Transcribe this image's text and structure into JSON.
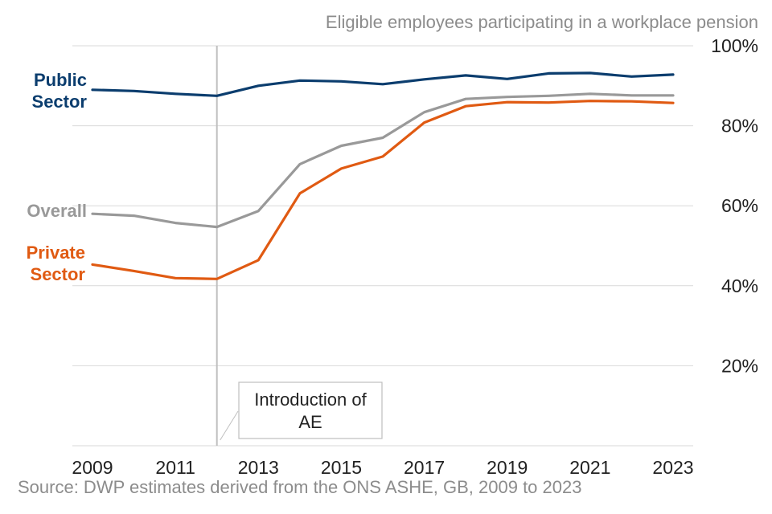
{
  "chart_data": {
    "type": "line",
    "title": "Eligible employees participating in a workplace pension",
    "source": "Source: DWP estimates derived from the ONS ASHE, GB, 2009 to 2023",
    "x": [
      2009,
      2010,
      2011,
      2012,
      2013,
      2014,
      2015,
      2016,
      2017,
      2018,
      2019,
      2020,
      2021,
      2022,
      2023
    ],
    "x_tick_labels": [
      "2009",
      "2011",
      "2013",
      "2015",
      "2017",
      "2019",
      "2021",
      "2023"
    ],
    "y_tick_labels": [
      "20%",
      "40%",
      "60%",
      "80%",
      "100%"
    ],
    "ylim": [
      0,
      100
    ],
    "y_axis_side": "right",
    "grid": true,
    "series": [
      {
        "label_lines": [
          "Public",
          "Sector"
        ],
        "color": "#0b3d6e",
        "values": [
          89,
          88.7,
          88,
          87.5,
          90,
          91.3,
          91.1,
          90.4,
          91.6,
          92.6,
          91.7,
          93.1,
          93.2,
          92.3,
          92.8
        ]
      },
      {
        "label_lines": [
          "Overall"
        ],
        "color": "#999999",
        "values": [
          58,
          57.5,
          55.7,
          54.7,
          58.7,
          70.4,
          75,
          77,
          83.4,
          86.7,
          87.2,
          87.5,
          88,
          87.6,
          87.6
        ]
      },
      {
        "label_lines": [
          "Private",
          "Sector"
        ],
        "color": "#e05a12",
        "values": [
          45.3,
          43.7,
          41.9,
          41.7,
          46.4,
          63.1,
          69.3,
          72.3,
          80.8,
          84.9,
          85.9,
          85.8,
          86.2,
          86.1,
          85.7
        ]
      }
    ],
    "annotations": [
      {
        "x": 2012,
        "text_lines": [
          "Introduction of",
          "AE"
        ],
        "line_color": "#bfbfbf"
      }
    ]
  }
}
